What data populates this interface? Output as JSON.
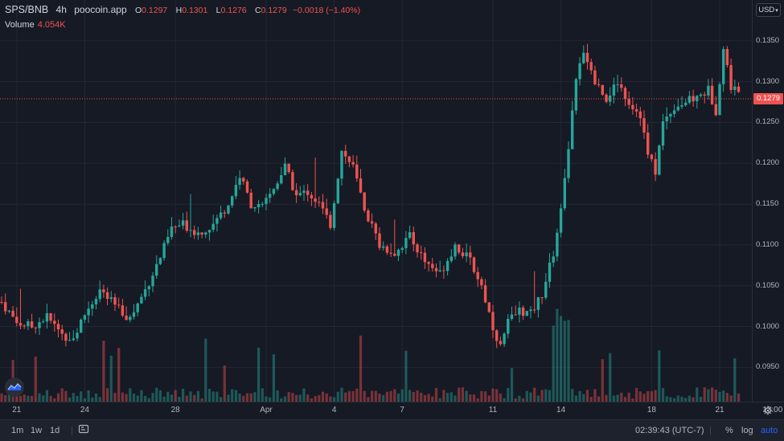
{
  "header": {
    "symbol": "SPS/BNB",
    "timeframe": "4h",
    "source": "poocoin.app",
    "o_label": "O",
    "o_value": "0.1297",
    "h_label": "H",
    "h_value": "0.1301",
    "l_label": "L",
    "l_value": "0.1276",
    "c_label": "C",
    "c_value": "0.1279",
    "change": "−0.0018 (−1.40%)",
    "volume_label": "Volume",
    "volume_value": "4.054K"
  },
  "currency_button": "USD",
  "last_price_tag": "0.1279",
  "bottom_toolbar": {
    "range_1m": "1m",
    "range_1w": "1w",
    "range_1d": "1d",
    "clock": "02:39:43 (UTC-7)",
    "percent": "%",
    "log": "log",
    "auto": "auto"
  },
  "colors": {
    "up": "#26a69a",
    "down": "#ef5350",
    "background": "#161a25",
    "grid": "#232733"
  },
  "icons": [
    "replay-icon",
    "settings-gear-icon",
    "tradingview-logo-icon"
  ],
  "chart_data": {
    "type": "candlestick",
    "title": "SPS/BNB · 4h · poocoin.app",
    "y_axis": {
      "ylim": [
        0.0908,
        0.14
      ],
      "ticks": [
        "0.0950",
        "0.1000",
        "0.1050",
        "0.1100",
        "0.1150",
        "0.1200",
        "0.1250",
        "0.1300",
        "0.1350"
      ],
      "position": "right"
    },
    "x_axis": {
      "ticks": [
        {
          "label": "21",
          "index": 4
        },
        {
          "label": "24",
          "index": 22
        },
        {
          "label": "28",
          "index": 46
        },
        {
          "label": "Apr",
          "index": 70
        },
        {
          "label": "4",
          "index": 88
        },
        {
          "label": "7",
          "index": 106
        },
        {
          "label": "11",
          "index": 130
        },
        {
          "label": "14",
          "index": 148
        },
        {
          "label": "18",
          "index": 172
        },
        {
          "label": "21",
          "index": 190
        },
        {
          "label": "13:00",
          "index": 204
        }
      ]
    },
    "last_price": 0.1279,
    "grid": true,
    "volume_overlay": true
  }
}
